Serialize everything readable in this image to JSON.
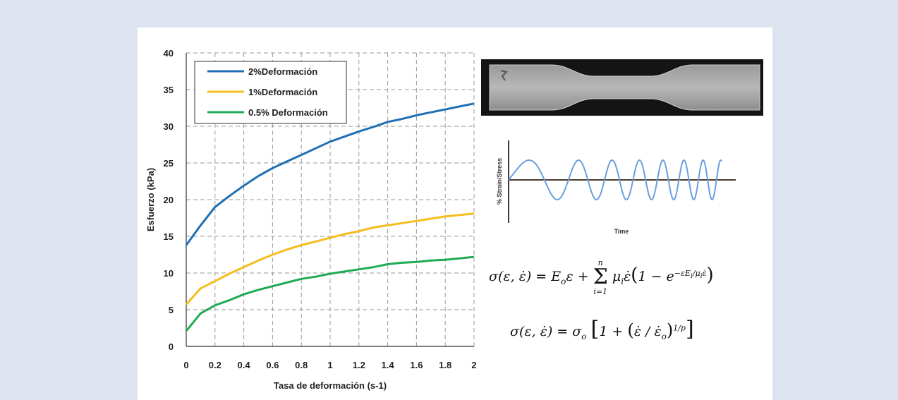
{
  "chart_data": {
    "type": "line",
    "xlabel": "Tasa de deformación (s-1)",
    "ylabel": "Esfuerzo (kPa)",
    "xlim": [
      0,
      2
    ],
    "ylim": [
      0,
      40
    ],
    "x_ticks": [
      "0",
      "0.2",
      "0.4",
      "0.6",
      "0.8",
      "1",
      "1.2",
      "1.4",
      "1.6",
      "1.8",
      "2"
    ],
    "y_ticks": [
      "0",
      "5",
      "10",
      "15",
      "20",
      "25",
      "30",
      "35",
      "40"
    ],
    "grid": true,
    "legend_position": "top-left",
    "x": [
      0,
      0.1,
      0.2,
      0.3,
      0.4,
      0.5,
      0.6,
      0.7,
      0.8,
      0.9,
      1.0,
      1.1,
      1.2,
      1.3,
      1.4,
      1.5,
      1.6,
      1.7,
      1.8,
      1.9,
      2.0
    ],
    "series": [
      {
        "name": "2%Deformación",
        "color": "#1f6fb4",
        "values": [
          13.8,
          16.5,
          19.0,
          20.5,
          21.9,
          23.2,
          24.3,
          25.2,
          26.1,
          27.0,
          27.9,
          28.6,
          29.3,
          29.9,
          30.6,
          31.0,
          31.5,
          31.9,
          32.3,
          32.7,
          33.1
        ]
      },
      {
        "name": "1%Deformación",
        "color": "#f5bd1e",
        "values": [
          5.7,
          7.9,
          8.9,
          9.9,
          10.8,
          11.7,
          12.5,
          13.2,
          13.8,
          14.3,
          14.8,
          15.3,
          15.7,
          16.2,
          16.5,
          16.8,
          17.1,
          17.4,
          17.7,
          17.9,
          18.1
        ]
      },
      {
        "name": "0.5% Deformación",
        "color": "#1faa55",
        "values": [
          2.1,
          4.5,
          5.6,
          6.3,
          7.1,
          7.7,
          8.2,
          8.7,
          9.2,
          9.5,
          9.9,
          10.2,
          10.5,
          10.8,
          11.2,
          11.4,
          11.5,
          11.7,
          11.8,
          12.0,
          12.2
        ]
      }
    ]
  },
  "inset_plot": {
    "ylabel": "% Strain/Stress",
    "xlabel": "Time",
    "line_color": "#6a9fdc"
  },
  "equations": {
    "eq1": "σ(ε, ε̇) = E_o ε + Σ_{i=1}^{n} μ_i ε̇ (1 − e^{−ε E_i / (μ_i ε̇)})",
    "eq2": "σ(ε, ε̇) = σ_o [1 + (ε̇/ε̇_o)^{1/p}]"
  }
}
